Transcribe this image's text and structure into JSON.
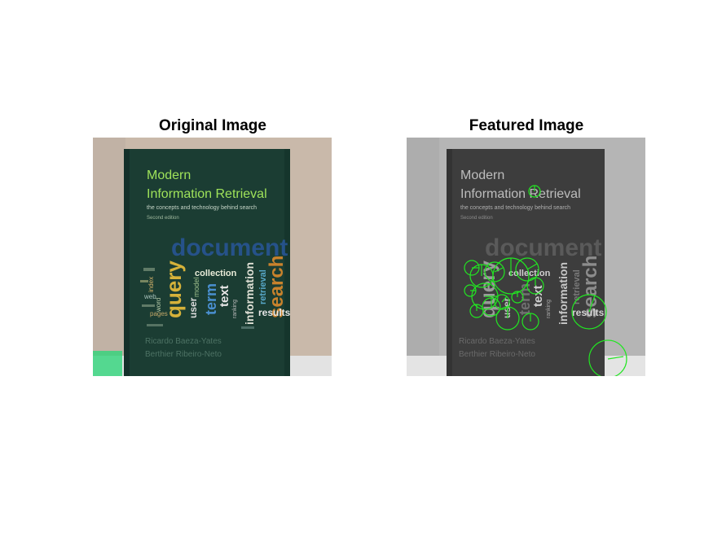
{
  "figure": {
    "left_title": "Original Image",
    "right_title": "Featured Image"
  },
  "book": {
    "title_line1": "Modern",
    "title_line2": "Information Retrieval",
    "subtitle": "the concepts and technology behind search",
    "edition": "Second edition",
    "author1": "Ricardo Baeza-Yates",
    "author2": "Berthier Ribeiro-Neto",
    "cloud": {
      "document": "document",
      "search": "search",
      "query": "query",
      "collection": "collection",
      "text": "text",
      "term": "term",
      "information": "information",
      "retrieval": "retrieval",
      "results": "results",
      "user": "user",
      "model": "model",
      "word": "word",
      "pages": "pages",
      "ranking": "ranking",
      "index": "index",
      "web": "web"
    }
  },
  "colors": {
    "cover_original": "#1c3b32",
    "wall_original": "#c8b8aa",
    "cover_gray": "#3f3f3f",
    "wall_gray": "#b4b4b4",
    "feature_marker": "#22e622"
  }
}
